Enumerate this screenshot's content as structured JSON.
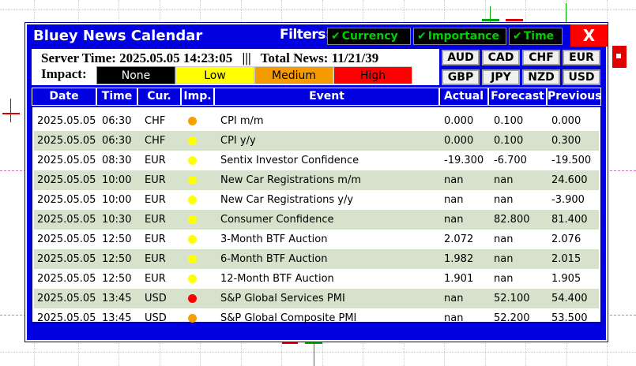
{
  "app": {
    "title": "Bluey News Calendar",
    "filters_label": "Filters:",
    "close_label": "X"
  },
  "filters": [
    {
      "label": "Currency",
      "checked": true,
      "check": "✔"
    },
    {
      "label": "Importance",
      "checked": true,
      "check": "✔"
    },
    {
      "label": "Time",
      "checked": true,
      "check": "✔"
    }
  ],
  "info": {
    "server_time": "Server Time: 2025.05.05 14:23:05",
    "separator": "|||",
    "total_news": "Total News: 11/21/39",
    "impact_label": "Impact:"
  },
  "impact_levels": [
    {
      "label": "None",
      "color": "#000000",
      "text_color": "#ffffff"
    },
    {
      "label": "Low",
      "color": "#ffff00",
      "text_color": "#000000"
    },
    {
      "label": "Medium",
      "color": "#f59b00",
      "text_color": "#000000"
    },
    {
      "label": "High",
      "color": "#ff0000",
      "text_color": "#000000"
    }
  ],
  "currencies": [
    "AUD",
    "CAD",
    "CHF",
    "EUR",
    "GBP",
    "JPY",
    "NZD",
    "USD"
  ],
  "columns": [
    "Date",
    "Time",
    "Cur.",
    "Imp.",
    "Event",
    "Actual",
    "Forecast",
    "Previous"
  ],
  "rows": [
    {
      "date": "2025.05.05",
      "time": "06:30",
      "cur": "CHF",
      "imp": "#f5a000",
      "event": "CPI m/m",
      "actual": "0.000",
      "forecast": "0.100",
      "previous": "0.000"
    },
    {
      "date": "2025.05.05",
      "time": "06:30",
      "cur": "CHF",
      "imp": "#ffff00",
      "event": "CPI y/y",
      "actual": "0.000",
      "forecast": "0.100",
      "previous": "0.300"
    },
    {
      "date": "2025.05.05",
      "time": "08:30",
      "cur": "EUR",
      "imp": "#ffff00",
      "event": "Sentix Investor Confidence",
      "actual": "-19.300",
      "forecast": "-6.700",
      "previous": "-19.500"
    },
    {
      "date": "2025.05.05",
      "time": "10:00",
      "cur": "EUR",
      "imp": "#ffff00",
      "event": "New Car Registrations m/m",
      "actual": "nan",
      "forecast": "nan",
      "previous": "24.600"
    },
    {
      "date": "2025.05.05",
      "time": "10:00",
      "cur": "EUR",
      "imp": "#ffff00",
      "event": "New Car Registrations y/y",
      "actual": "nan",
      "forecast": "nan",
      "previous": "-3.900"
    },
    {
      "date": "2025.05.05",
      "time": "10:30",
      "cur": "EUR",
      "imp": "#ffff00",
      "event": "Consumer Confidence",
      "actual": "nan",
      "forecast": "82.800",
      "previous": "81.400"
    },
    {
      "date": "2025.05.05",
      "time": "12:50",
      "cur": "EUR",
      "imp": "#ffff00",
      "event": "3-Month BTF Auction",
      "actual": "2.072",
      "forecast": "nan",
      "previous": "2.076"
    },
    {
      "date": "2025.05.05",
      "time": "12:50",
      "cur": "EUR",
      "imp": "#ffff00",
      "event": "6-Month BTF Auction",
      "actual": "1.982",
      "forecast": "nan",
      "previous": "2.015"
    },
    {
      "date": "2025.05.05",
      "time": "12:50",
      "cur": "EUR",
      "imp": "#ffff00",
      "event": "12-Month BTF Auction",
      "actual": "1.901",
      "forecast": "nan",
      "previous": "1.905"
    },
    {
      "date": "2025.05.05",
      "time": "13:45",
      "cur": "USD",
      "imp": "#ff0000",
      "event": "S&P Global Services PMI",
      "actual": "nan",
      "forecast": "52.100",
      "previous": "54.400"
    },
    {
      "date": "2025.05.05",
      "time": "13:45",
      "cur": "USD",
      "imp": "#f5a000",
      "event": "S&P Global Composite PMI",
      "actual": "nan",
      "forecast": "52.200",
      "previous": "53.500"
    }
  ]
}
